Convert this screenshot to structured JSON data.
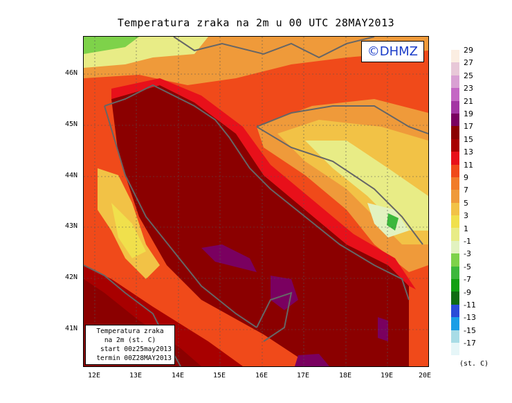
{
  "title": "Temperatura zraka na 2m u 00 UTC 28MAY2013",
  "logo": "©DHMZ",
  "info_box": {
    "line1": "Temperatura zraka",
    "line2": "na 2m (st. C)",
    "line3": "start 00z25may2013",
    "line4": "termin 00Z28MAY2013"
  },
  "lat_labels": [
    "46N",
    "45N",
    "44N",
    "43N",
    "42N",
    "41N"
  ],
  "lon_labels": [
    "12E",
    "13E",
    "14E",
    "15E",
    "16E",
    "17E",
    "18E",
    "19E",
    "20E"
  ],
  "legend": {
    "labels": [
      "29",
      "27",
      "25",
      "23",
      "21",
      "19",
      "17",
      "15",
      "13",
      "11",
      "9",
      "7",
      "5",
      "3",
      "1",
      "-1",
      "-3",
      "-5",
      "-7",
      "-9",
      "-11",
      "-13",
      "-15",
      "-17"
    ],
    "colors": [
      "#fbeee2",
      "#e8c8d8",
      "#d9a0d3",
      "#c467c4",
      "#a335a3",
      "#7a0060",
      "#8b0000",
      "#a80000",
      "#e8101a",
      "#f04a1a",
      "#f17c2a",
      "#ef9a3a",
      "#f2c246",
      "#f0e04c",
      "#e8ec86",
      "#e2f2c0",
      "#7ed24a",
      "#3cb83c",
      "#12a012",
      "#106c12",
      "#2a4cd8",
      "#1a9ee6",
      "#a8dce6",
      "#e6f6f8"
    ],
    "unit": "(st. C)"
  }
}
